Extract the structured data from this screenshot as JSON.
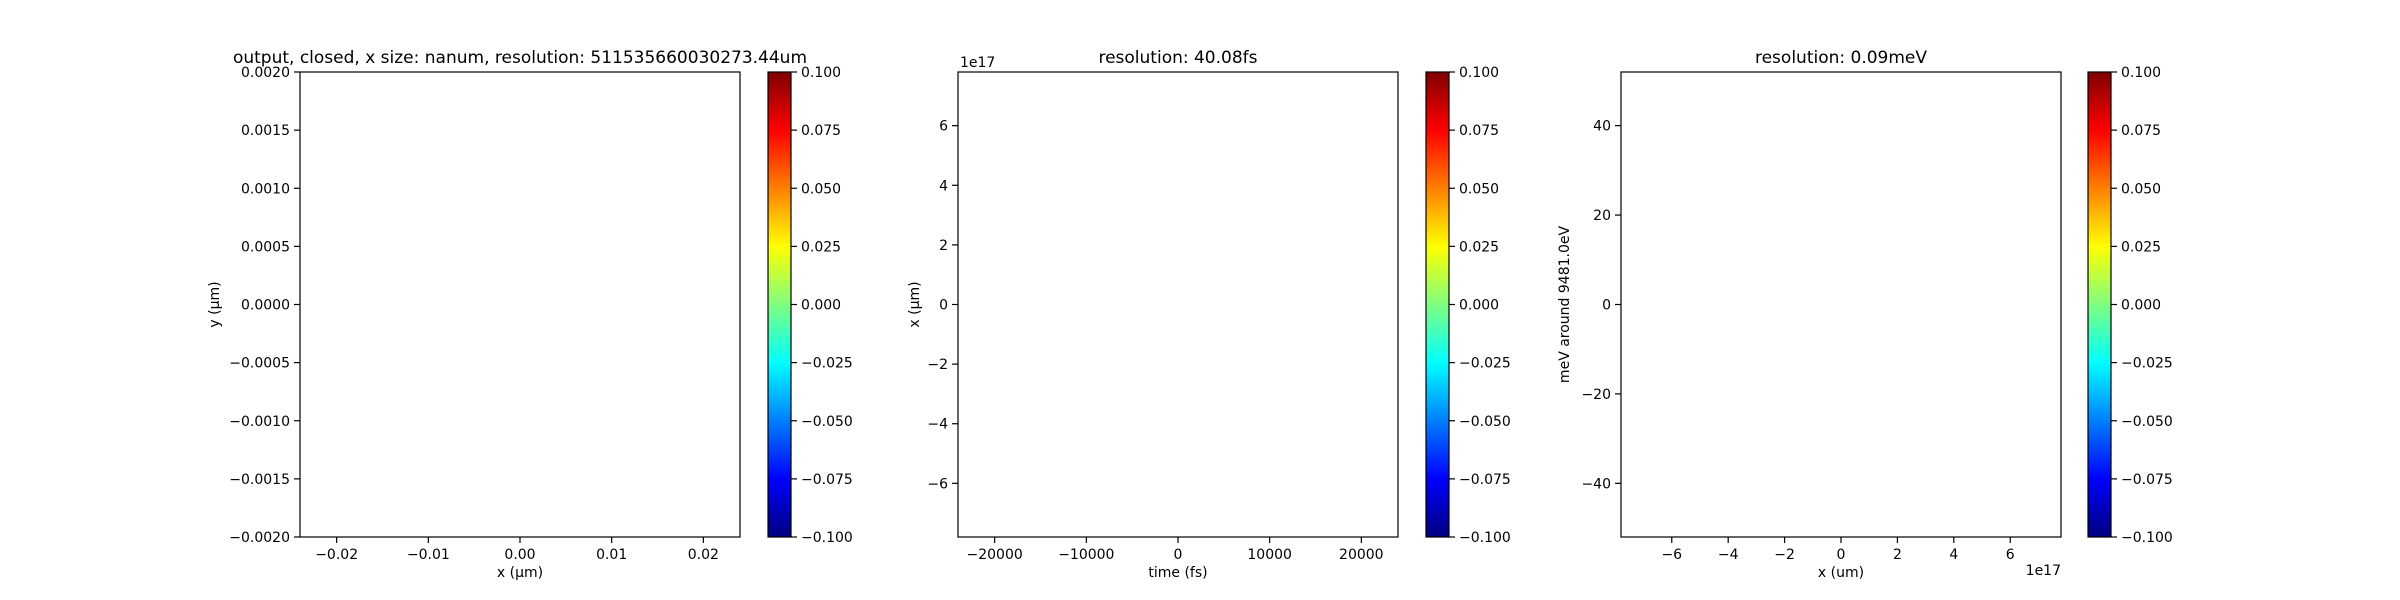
{
  "colorbar": {
    "colors": [
      "#00007f",
      "#0000ff",
      "#007fff",
      "#00ffff",
      "#7fff7f",
      "#ffff00",
      "#ff7f00",
      "#ff0000",
      "#7f0000"
    ],
    "range": [
      -0.1,
      0.1
    ],
    "ticks": [
      "-0.100",
      "-0.075",
      "-0.050",
      "-0.025",
      "0.000",
      "0.025",
      "0.050",
      "0.075",
      "0.100"
    ]
  },
  "chart_data": [
    {
      "type": "heatmap",
      "title": "output, closed, x size: nanum, resolution: 511535660030273.44um",
      "xlabel": "x (μm)",
      "ylabel": "y (μm)",
      "xlim": [
        -0.024,
        0.024
      ],
      "ylim": [
        -0.002,
        0.002
      ],
      "xticks": [
        -0.02,
        -0.01,
        0.0,
        0.01,
        0.02
      ],
      "xtick_labels": [
        "−0.02",
        "−0.01",
        "0.00",
        "0.01",
        "0.02"
      ],
      "yticks": [
        -0.002,
        -0.0015,
        -0.001,
        -0.0005,
        0.0,
        0.0005,
        0.001,
        0.0015,
        0.002
      ],
      "ytick_labels": [
        "−0.0020",
        "−0.0015",
        "−0.0010",
        "−0.0005",
        "0.0000",
        "0.0005",
        "0.0010",
        "0.0015",
        "0.0020"
      ],
      "offset_x": "",
      "offset_y": "",
      "colorbar_range": [
        -0.1,
        0.1
      ]
    },
    {
      "type": "heatmap",
      "title": "resolution: 40.08fs",
      "xlabel": "time (fs)",
      "ylabel": "x (μm)",
      "xlim": [
        -24000,
        24000
      ],
      "ylim": [
        -7.8,
        7.8
      ],
      "xticks": [
        -20000,
        -10000,
        0,
        10000,
        20000
      ],
      "xtick_labels": [
        "−20000",
        "−10000",
        "0",
        "10000",
        "20000"
      ],
      "yticks": [
        -6,
        -4,
        -2,
        0,
        2,
        4,
        6
      ],
      "ytick_labels": [
        "−6",
        "−4",
        "−2",
        "0",
        "2",
        "4",
        "6"
      ],
      "offset_x": "",
      "offset_y": "1e17",
      "colorbar_range": [
        -0.1,
        0.1
      ]
    },
    {
      "type": "heatmap",
      "title": "resolution: 0.09meV",
      "xlabel": "x (um)",
      "ylabel": "meV around 9481.0eV",
      "xlim": [
        -7.8,
        7.8
      ],
      "ylim": [
        -52,
        52
      ],
      "xticks": [
        -6,
        -4,
        -2,
        0,
        2,
        4,
        6
      ],
      "xtick_labels": [
        "−6",
        "−4",
        "−2",
        "0",
        "2",
        "4",
        "6"
      ],
      "yticks": [
        -40,
        -20,
        0,
        20,
        40
      ],
      "ytick_labels": [
        "−40",
        "−20",
        "0",
        "20",
        "40"
      ],
      "offset_x": "1e17",
      "offset_y": "",
      "colorbar_range": [
        -0.1,
        0.1
      ]
    }
  ]
}
